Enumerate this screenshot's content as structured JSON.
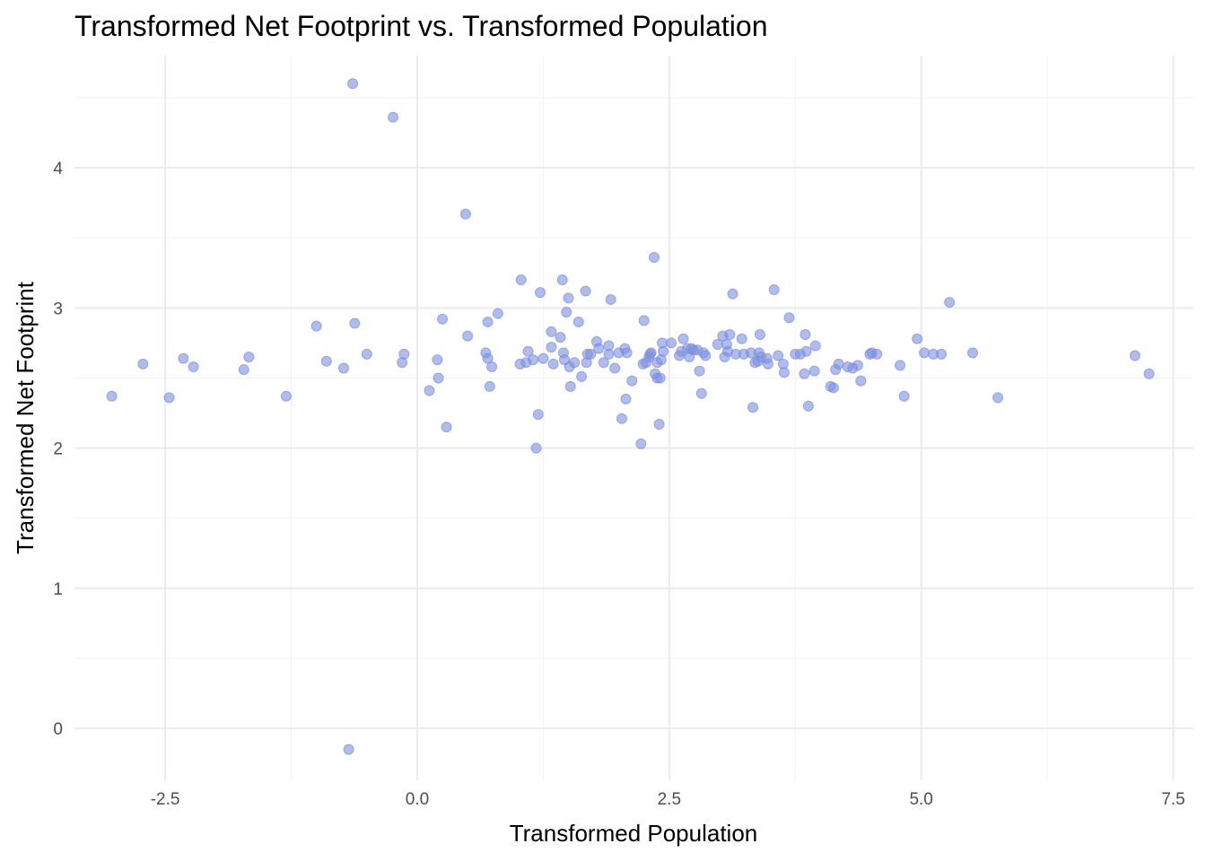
{
  "chart_data": {
    "type": "scatter",
    "title": "Transformed Net Footprint vs. Transformed Population",
    "xlabel": "Transformed Population",
    "ylabel": "Transformed Net Footprint",
    "xlim": [
      -3.4,
      7.7
    ],
    "ylim": [
      -0.37,
      4.8
    ],
    "xticks": [
      -2.5,
      0.0,
      2.5,
      5.0,
      7.5
    ],
    "xtick_labels": [
      "-2.5",
      "0.0",
      "2.5",
      "5.0",
      "7.5"
    ],
    "yticks": [
      0,
      1,
      2,
      3,
      4
    ],
    "ytick_labels": [
      "0",
      "1",
      "2",
      "3",
      "4"
    ],
    "grid": true,
    "point_color": "#7b8fe0",
    "points": [
      [
        -3.03,
        2.37
      ],
      [
        -2.72,
        2.6
      ],
      [
        -2.46,
        2.36
      ],
      [
        -2.32,
        2.64
      ],
      [
        -2.22,
        2.58
      ],
      [
        -1.72,
        2.56
      ],
      [
        -1.67,
        2.65
      ],
      [
        -1.3,
        2.37
      ],
      [
        -1.0,
        2.87
      ],
      [
        -0.9,
        2.62
      ],
      [
        -0.73,
        2.57
      ],
      [
        -0.62,
        2.89
      ],
      [
        -0.5,
        2.67
      ],
      [
        -0.15,
        2.61
      ],
      [
        -0.13,
        2.67
      ],
      [
        -0.64,
        4.6
      ],
      [
        -0.24,
        4.36
      ],
      [
        -0.68,
        -0.15
      ],
      [
        0.12,
        2.41
      ],
      [
        0.2,
        2.63
      ],
      [
        0.21,
        2.5
      ],
      [
        0.25,
        2.92
      ],
      [
        0.29,
        2.15
      ],
      [
        0.48,
        3.67
      ],
      [
        0.5,
        2.8
      ],
      [
        0.68,
        2.68
      ],
      [
        0.7,
        2.9
      ],
      [
        0.7,
        2.64
      ],
      [
        0.72,
        2.44
      ],
      [
        0.74,
        2.58
      ],
      [
        0.8,
        2.96
      ],
      [
        1.02,
        2.6
      ],
      [
        1.03,
        3.2
      ],
      [
        1.08,
        2.61
      ],
      [
        1.1,
        2.69
      ],
      [
        1.15,
        2.63
      ],
      [
        1.18,
        2.0
      ],
      [
        1.2,
        2.24
      ],
      [
        1.22,
        3.11
      ],
      [
        1.25,
        2.64
      ],
      [
        1.33,
        2.83
      ],
      [
        1.33,
        2.72
      ],
      [
        1.35,
        2.6
      ],
      [
        1.42,
        2.79
      ],
      [
        1.44,
        3.2
      ],
      [
        1.45,
        2.68
      ],
      [
        1.46,
        2.63
      ],
      [
        1.48,
        2.97
      ],
      [
        1.5,
        3.07
      ],
      [
        1.51,
        2.58
      ],
      [
        1.52,
        2.44
      ],
      [
        1.56,
        2.61
      ],
      [
        1.6,
        2.9
      ],
      [
        1.63,
        2.51
      ],
      [
        1.67,
        3.12
      ],
      [
        1.68,
        2.61
      ],
      [
        1.69,
        2.67
      ],
      [
        1.72,
        2.67
      ],
      [
        1.78,
        2.76
      ],
      [
        1.8,
        2.71
      ],
      [
        1.85,
        2.61
      ],
      [
        1.9,
        2.73
      ],
      [
        1.9,
        2.67
      ],
      [
        1.92,
        3.06
      ],
      [
        1.96,
        2.57
      ],
      [
        2.0,
        2.68
      ],
      [
        2.03,
        2.21
      ],
      [
        2.06,
        2.71
      ],
      [
        2.07,
        2.35
      ],
      [
        2.08,
        2.68
      ],
      [
        2.13,
        2.48
      ],
      [
        2.22,
        2.03
      ],
      [
        2.24,
        2.6
      ],
      [
        2.25,
        2.91
      ],
      [
        2.27,
        2.61
      ],
      [
        2.3,
        2.65
      ],
      [
        2.31,
        2.67
      ],
      [
        2.32,
        2.68
      ],
      [
        2.35,
        3.36
      ],
      [
        2.36,
        2.53
      ],
      [
        2.38,
        2.61
      ],
      [
        2.38,
        2.5
      ],
      [
        2.4,
        2.17
      ],
      [
        2.41,
        2.5
      ],
      [
        2.42,
        2.63
      ],
      [
        2.43,
        2.75
      ],
      [
        2.44,
        2.69
      ],
      [
        2.52,
        2.75
      ],
      [
        2.6,
        2.66
      ],
      [
        2.62,
        2.69
      ],
      [
        2.64,
        2.78
      ],
      [
        2.68,
        2.71
      ],
      [
        2.7,
        2.65
      ],
      [
        2.72,
        2.71
      ],
      [
        2.74,
        2.7
      ],
      [
        2.78,
        2.7
      ],
      [
        2.8,
        2.55
      ],
      [
        2.82,
        2.39
      ],
      [
        2.84,
        2.68
      ],
      [
        2.86,
        2.66
      ],
      [
        2.98,
        2.74
      ],
      [
        3.03,
        2.8
      ],
      [
        3.05,
        2.65
      ],
      [
        3.07,
        2.74
      ],
      [
        3.08,
        2.69
      ],
      [
        3.1,
        2.81
      ],
      [
        3.13,
        3.1
      ],
      [
        3.16,
        2.67
      ],
      [
        3.22,
        2.78
      ],
      [
        3.24,
        2.67
      ],
      [
        3.31,
        2.68
      ],
      [
        3.33,
        2.29
      ],
      [
        3.35,
        2.61
      ],
      [
        3.38,
        2.62
      ],
      [
        3.39,
        2.68
      ],
      [
        3.4,
        2.81
      ],
      [
        3.41,
        2.65
      ],
      [
        3.47,
        2.64
      ],
      [
        3.48,
        2.6
      ],
      [
        3.54,
        3.13
      ],
      [
        3.58,
        2.66
      ],
      [
        3.63,
        2.6
      ],
      [
        3.64,
        2.54
      ],
      [
        3.69,
        2.93
      ],
      [
        3.75,
        2.67
      ],
      [
        3.8,
        2.67
      ],
      [
        3.84,
        2.53
      ],
      [
        3.85,
        2.81
      ],
      [
        3.86,
        2.69
      ],
      [
        3.88,
        2.3
      ],
      [
        3.94,
        2.55
      ],
      [
        3.95,
        2.73
      ],
      [
        4.1,
        2.44
      ],
      [
        4.13,
        2.43
      ],
      [
        4.15,
        2.56
      ],
      [
        4.18,
        2.6
      ],
      [
        4.27,
        2.58
      ],
      [
        4.32,
        2.57
      ],
      [
        4.37,
        2.59
      ],
      [
        4.4,
        2.48
      ],
      [
        4.49,
        2.67
      ],
      [
        4.51,
        2.68
      ],
      [
        4.56,
        2.67
      ],
      [
        4.79,
        2.59
      ],
      [
        4.83,
        2.37
      ],
      [
        4.96,
        2.78
      ],
      [
        5.03,
        2.68
      ],
      [
        5.12,
        2.67
      ],
      [
        5.2,
        2.67
      ],
      [
        5.28,
        3.04
      ],
      [
        5.51,
        2.68
      ],
      [
        5.76,
        2.36
      ],
      [
        7.12,
        2.66
      ],
      [
        7.26,
        2.53
      ]
    ]
  }
}
